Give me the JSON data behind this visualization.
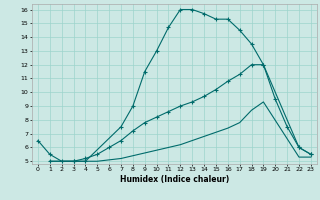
{
  "xlabel": "Humidex (Indice chaleur)",
  "bg_color": "#cce8e4",
  "line_color": "#006b6b",
  "grid_color": "#9dd4cc",
  "xlim": [
    -0.5,
    23.5
  ],
  "ylim": [
    4.8,
    16.4
  ],
  "xticks": [
    0,
    1,
    2,
    3,
    4,
    5,
    6,
    7,
    8,
    9,
    10,
    11,
    12,
    13,
    14,
    15,
    16,
    17,
    18,
    19,
    20,
    21,
    22,
    23
  ],
  "yticks": [
    5,
    6,
    7,
    8,
    9,
    10,
    11,
    12,
    13,
    14,
    15,
    16
  ],
  "line1_x": [
    0,
    1,
    2,
    3,
    4,
    7,
    8,
    9,
    10,
    11,
    12,
    13,
    14,
    15,
    16,
    17,
    18,
    19,
    20,
    21,
    22,
    23
  ],
  "line1_y": [
    6.5,
    5.5,
    5.0,
    5.0,
    5.0,
    7.5,
    9.0,
    11.5,
    13.0,
    14.7,
    16.0,
    16.0,
    15.7,
    15.3,
    15.3,
    14.5,
    13.5,
    12.0,
    9.5,
    7.5,
    6.0,
    5.5
  ],
  "line2_x": [
    1,
    3,
    4,
    5,
    6,
    7,
    8,
    9,
    10,
    11,
    12,
    13,
    14,
    15,
    16,
    17,
    18,
    19,
    22,
    23
  ],
  "line2_y": [
    5.0,
    5.0,
    5.2,
    5.5,
    6.0,
    6.5,
    7.2,
    7.8,
    8.2,
    8.6,
    9.0,
    9.3,
    9.7,
    10.2,
    10.8,
    11.3,
    12.0,
    12.0,
    6.0,
    5.5
  ],
  "line3_x": [
    1,
    3,
    4,
    5,
    6,
    7,
    8,
    9,
    10,
    11,
    12,
    13,
    14,
    15,
    16,
    17,
    18,
    19,
    22,
    23
  ],
  "line3_y": [
    5.0,
    5.0,
    5.0,
    5.0,
    5.1,
    5.2,
    5.4,
    5.6,
    5.8,
    6.0,
    6.2,
    6.5,
    6.8,
    7.1,
    7.4,
    7.8,
    8.7,
    9.3,
    5.3,
    5.3
  ]
}
